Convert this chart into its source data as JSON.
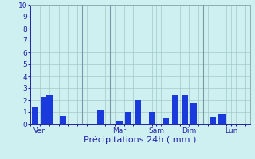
{
  "xlabel": "Précipitations 24h ( mm )",
  "ylim": [
    0,
    10
  ],
  "yticks": [
    0,
    1,
    2,
    3,
    4,
    5,
    6,
    7,
    8,
    9,
    10
  ],
  "background_color": "#cff0f0",
  "bar_color": "#1a3adc",
  "grid_color": "#a0c8c8",
  "bar_positions": [
    0.5,
    1.5,
    2.0,
    3.5,
    7.5,
    9.5,
    10.5,
    11.5,
    13.0,
    14.5,
    15.5,
    16.5,
    17.5,
    19.5,
    20.5
  ],
  "bar_heights": [
    1.4,
    2.3,
    2.4,
    0.7,
    1.2,
    0.3,
    1.0,
    2.0,
    1.0,
    0.5,
    2.5,
    2.5,
    1.8,
    0.6,
    0.9
  ],
  "bar_width": 0.7,
  "day_labels": [
    "Ven",
    "Mar",
    "Sam",
    "Dim",
    "Lun"
  ],
  "day_tick_positions": [
    1.0,
    9.5,
    13.5,
    17.0,
    21.5
  ],
  "vline_positions": [
    5.5,
    8.5,
    18.5
  ],
  "xlabel_fontsize": 8,
  "tick_fontsize": 6.5,
  "xlim": [
    0,
    23.5
  ]
}
